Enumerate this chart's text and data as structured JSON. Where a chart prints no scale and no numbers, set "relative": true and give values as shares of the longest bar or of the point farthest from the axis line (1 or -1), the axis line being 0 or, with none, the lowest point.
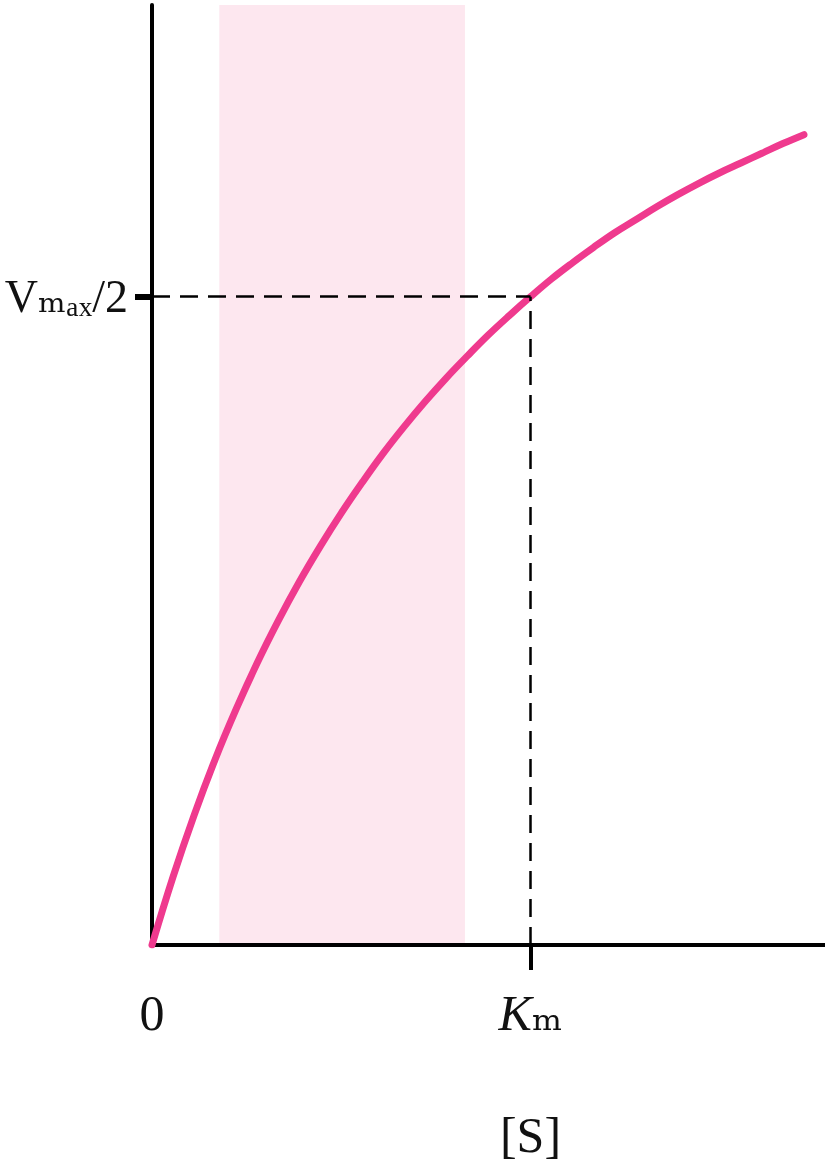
{
  "chart_data": {
    "type": "line",
    "relative": true,
    "xlabel": "[S]",
    "categories": [
      "0",
      null,
      null,
      null,
      null,
      null,
      null,
      null,
      null,
      null,
      null,
      null,
      null,
      null,
      null,
      null,
      null,
      null,
      "Kₘ",
      null,
      null,
      null,
      null,
      null,
      null,
      null,
      null,
      null,
      null,
      null,
      null,
      null,
      null
    ],
    "values": [
      0,
      0.084,
      0.16,
      0.229,
      0.291,
      0.348,
      0.4,
      0.448,
      0.492,
      0.533,
      0.571,
      0.607,
      0.64,
      0.671,
      0.7,
      0.727,
      0.753,
      0.777,
      0.8,
      0.822,
      0.842,
      0.861,
      0.879,
      0.895,
      0.911,
      0.926,
      0.94,
      0.953,
      0.965,
      0.977,
      0.989,
      1,
      null
    ],
    "color": "#ef3a8e",
    "ref_lines": [
      {
        "axis": "y",
        "value": 0.8,
        "label": "Vₘₐₓ/2",
        "line_style": "dashed",
        "color": "#000000"
      },
      {
        "axis": "x",
        "value": "Kₘ",
        "line_style": "dashed",
        "color": "#000000"
      }
    ]
  }
}
